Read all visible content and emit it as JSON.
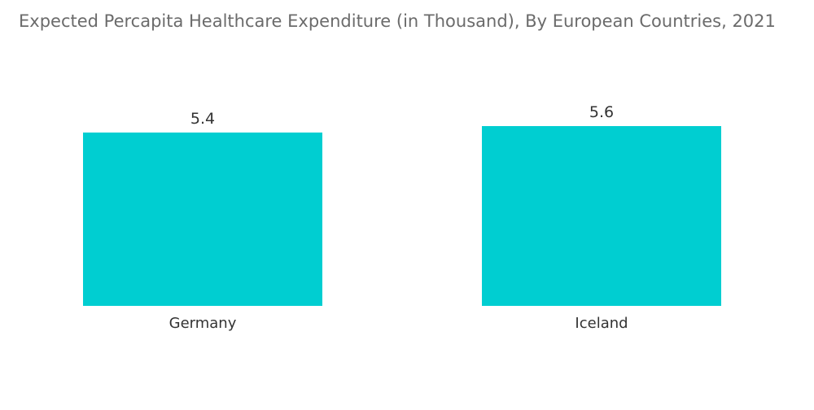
{
  "chart_data": {
    "type": "bar",
    "title": "Expected Percapita Healthcare Expenditure (in Thousand), By European Countries, 2021",
    "categories": [
      "Germany",
      "Iceland"
    ],
    "values": [
      5.4,
      5.6
    ],
    "value_labels": [
      "5.4",
      "5.6"
    ],
    "xlabel": "",
    "ylabel": "",
    "ylim": [
      0,
      5.6
    ],
    "grid": false,
    "legend": "none",
    "bar_color": "#00CED1"
  }
}
